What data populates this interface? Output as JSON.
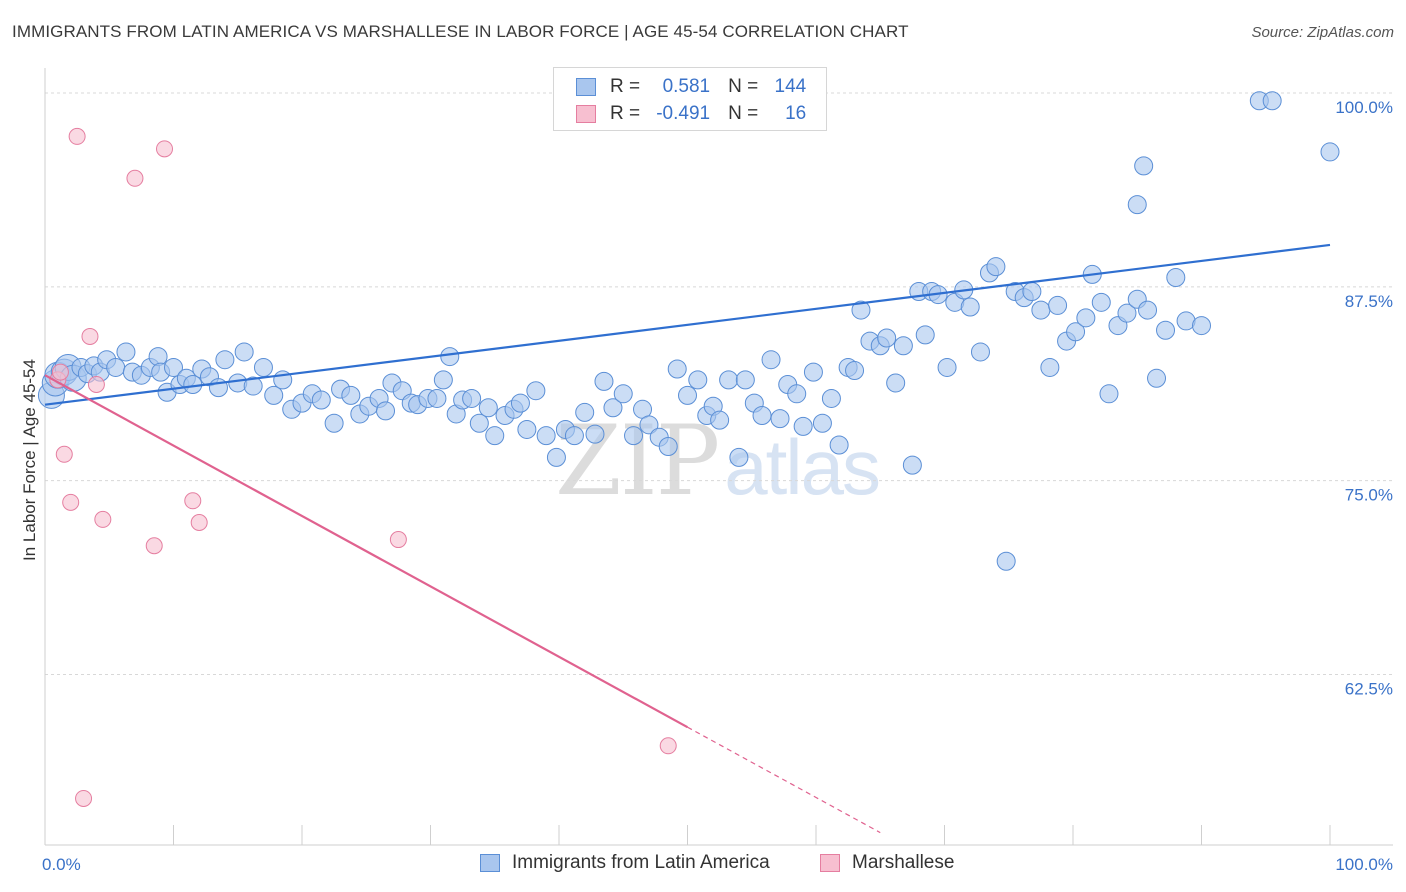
{
  "title": "IMMIGRANTS FROM LATIN AMERICA VS MARSHALLESE IN LABOR FORCE | AGE 45-54 CORRELATION CHART",
  "source": "Source: ZipAtlas.com",
  "watermark": {
    "zip": "ZIP",
    "atlas": "atlas"
  },
  "legend": {
    "r_label": "R =",
    "n_label": "N =",
    "series": [
      {
        "name": "Immigrants from Latin America",
        "r": "0.581",
        "n": "144",
        "color": "#a9c6ee",
        "edge": "#5b8fd6"
      },
      {
        "name": "Marshallese",
        "r": "-0.491",
        "n": "16",
        "color": "#f7bfd0",
        "edge": "#e57ea0"
      }
    ]
  },
  "colors": {
    "blue_line": "#2f6fd0",
    "pink_line": "#e0628f",
    "grid": "#d8d8d8",
    "tick_text": "#3a72c8"
  },
  "chart_data": {
    "type": "scatter",
    "title": "IMMIGRANTS FROM LATIN AMERICA VS MARSHALLESE IN LABOR FORCE | AGE 45-54 CORRELATION CHART",
    "xlabel": "",
    "ylabel": "In Labor Force | Age 45-54",
    "xlim": [
      0,
      100
    ],
    "ylim": [
      51.5,
      102
    ],
    "x_tick_labels": [
      "0.0%",
      "100.0%"
    ],
    "y_ticks": [
      62.5,
      75.0,
      87.5,
      100.0
    ],
    "y_tick_labels": [
      "62.5%",
      "75.0%",
      "87.5%",
      "100.0%"
    ],
    "series": [
      {
        "name": "Immigrants from Latin America",
        "trend": {
          "x": [
            0,
            100
          ],
          "y": [
            79.9,
            90.2
          ]
        },
        "points": [
          [
            0.5,
            80.5
          ],
          [
            0.8,
            81.3
          ],
          [
            1.0,
            81.8
          ],
          [
            1.5,
            82.0
          ],
          [
            1.8,
            82.3
          ],
          [
            2.2,
            81.6
          ],
          [
            2.8,
            82.3
          ],
          [
            3.3,
            81.9
          ],
          [
            3.8,
            82.4
          ],
          [
            4.3,
            82.0
          ],
          [
            4.8,
            82.8
          ],
          [
            5.5,
            82.3
          ],
          [
            6.3,
            83.3
          ],
          [
            6.8,
            82.0
          ],
          [
            7.5,
            81.8
          ],
          [
            8.2,
            82.3
          ],
          [
            8.8,
            83.0
          ],
          [
            9.0,
            82.0
          ],
          [
            9.5,
            80.7
          ],
          [
            10.0,
            82.3
          ],
          [
            10.5,
            81.2
          ],
          [
            11.0,
            81.6
          ],
          [
            11.5,
            81.2
          ],
          [
            12.2,
            82.2
          ],
          [
            12.8,
            81.7
          ],
          [
            13.5,
            81.0
          ],
          [
            14.0,
            82.8
          ],
          [
            15.0,
            81.3
          ],
          [
            15.5,
            83.3
          ],
          [
            16.2,
            81.1
          ],
          [
            17.0,
            82.3
          ],
          [
            17.8,
            80.5
          ],
          [
            18.5,
            81.5
          ],
          [
            19.2,
            79.6
          ],
          [
            20.0,
            80.0
          ],
          [
            20.8,
            80.6
          ],
          [
            21.5,
            80.2
          ],
          [
            22.5,
            78.7
          ],
          [
            23.0,
            80.9
          ],
          [
            23.8,
            80.5
          ],
          [
            24.5,
            79.3
          ],
          [
            25.2,
            79.8
          ],
          [
            26.0,
            80.3
          ],
          [
            26.5,
            79.5
          ],
          [
            27.0,
            81.3
          ],
          [
            27.8,
            80.8
          ],
          [
            28.5,
            80.0
          ],
          [
            29.0,
            79.9
          ],
          [
            29.8,
            80.3
          ],
          [
            30.5,
            80.3
          ],
          [
            31.0,
            81.5
          ],
          [
            31.5,
            83.0
          ],
          [
            32.0,
            79.3
          ],
          [
            32.5,
            80.2
          ],
          [
            33.2,
            80.3
          ],
          [
            33.8,
            78.7
          ],
          [
            34.5,
            79.7
          ],
          [
            35.0,
            77.9
          ],
          [
            35.8,
            79.2
          ],
          [
            36.5,
            79.6
          ],
          [
            37.0,
            80.0
          ],
          [
            37.5,
            78.3
          ],
          [
            38.2,
            80.8
          ],
          [
            39.0,
            77.9
          ],
          [
            39.8,
            76.5
          ],
          [
            40.5,
            78.3
          ],
          [
            41.2,
            77.9
          ],
          [
            42.0,
            79.4
          ],
          [
            42.8,
            78.0
          ],
          [
            43.5,
            81.4
          ],
          [
            44.2,
            79.7
          ],
          [
            45.0,
            80.6
          ],
          [
            45.8,
            77.9
          ],
          [
            46.5,
            79.6
          ],
          [
            47.0,
            78.6
          ],
          [
            47.8,
            77.8
          ],
          [
            48.5,
            77.2
          ],
          [
            49.2,
            82.2
          ],
          [
            50.0,
            80.5
          ],
          [
            50.8,
            81.5
          ],
          [
            51.5,
            79.2
          ],
          [
            52.0,
            79.8
          ],
          [
            52.5,
            78.9
          ],
          [
            53.2,
            81.5
          ],
          [
            54.0,
            76.5
          ],
          [
            54.5,
            81.5
          ],
          [
            55.2,
            80.0
          ],
          [
            55.8,
            79.2
          ],
          [
            56.5,
            82.8
          ],
          [
            57.2,
            79.0
          ],
          [
            57.8,
            81.2
          ],
          [
            58.5,
            80.6
          ],
          [
            59.0,
            78.5
          ],
          [
            59.8,
            82.0
          ],
          [
            60.5,
            78.7
          ],
          [
            61.2,
            80.3
          ],
          [
            61.8,
            77.3
          ],
          [
            62.5,
            82.3
          ],
          [
            63.0,
            82.1
          ],
          [
            63.5,
            86.0
          ],
          [
            64.2,
            84.0
          ],
          [
            65.0,
            83.7
          ],
          [
            65.5,
            84.2
          ],
          [
            66.2,
            81.3
          ],
          [
            66.8,
            83.7
          ],
          [
            67.5,
            76.0
          ],
          [
            68.0,
            87.2
          ],
          [
            68.5,
            84.4
          ],
          [
            69.0,
            87.2
          ],
          [
            69.5,
            87.0
          ],
          [
            70.2,
            82.3
          ],
          [
            70.8,
            86.5
          ],
          [
            71.5,
            87.3
          ],
          [
            72.0,
            86.2
          ],
          [
            72.8,
            83.3
          ],
          [
            73.5,
            88.4
          ],
          [
            74.0,
            88.8
          ],
          [
            74.8,
            69.8
          ],
          [
            75.5,
            87.2
          ],
          [
            76.2,
            86.8
          ],
          [
            76.8,
            87.2
          ],
          [
            77.5,
            86.0
          ],
          [
            78.2,
            82.3
          ],
          [
            78.8,
            86.3
          ],
          [
            79.5,
            84.0
          ],
          [
            80.2,
            84.6
          ],
          [
            81.0,
            85.5
          ],
          [
            81.5,
            88.3
          ],
          [
            82.2,
            86.5
          ],
          [
            82.8,
            80.6
          ],
          [
            83.5,
            85.0
          ],
          [
            84.2,
            85.8
          ],
          [
            85.0,
            86.7
          ],
          [
            85.8,
            86.0
          ],
          [
            86.5,
            81.6
          ],
          [
            87.2,
            84.7
          ],
          [
            88.0,
            88.1
          ],
          [
            88.8,
            85.3
          ],
          [
            90.0,
            85.0
          ],
          [
            94.5,
            99.5
          ],
          [
            95.5,
            99.5
          ],
          [
            100.0,
            96.2
          ],
          [
            85.0,
            92.8
          ],
          [
            85.5,
            95.3
          ]
        ]
      },
      {
        "name": "Marshallese",
        "trend": {
          "x": [
            0,
            50
          ],
          "y": [
            81.8,
            59.1
          ]
        },
        "trend_dashed": {
          "x": [
            50,
            65
          ],
          "y": [
            59.1,
            52.3
          ]
        },
        "points": [
          [
            1.0,
            81.5
          ],
          [
            1.2,
            82.0
          ],
          [
            1.5,
            76.7
          ],
          [
            2.0,
            73.6
          ],
          [
            2.5,
            97.2
          ],
          [
            3.5,
            84.3
          ],
          [
            4.0,
            81.2
          ],
          [
            4.5,
            72.5
          ],
          [
            7.0,
            94.5
          ],
          [
            8.5,
            70.8
          ],
          [
            9.3,
            96.4
          ],
          [
            11.5,
            73.7
          ],
          [
            12.0,
            72.3
          ],
          [
            27.5,
            71.2
          ],
          [
            48.5,
            57.9
          ],
          [
            3.0,
            54.5
          ]
        ]
      }
    ]
  }
}
